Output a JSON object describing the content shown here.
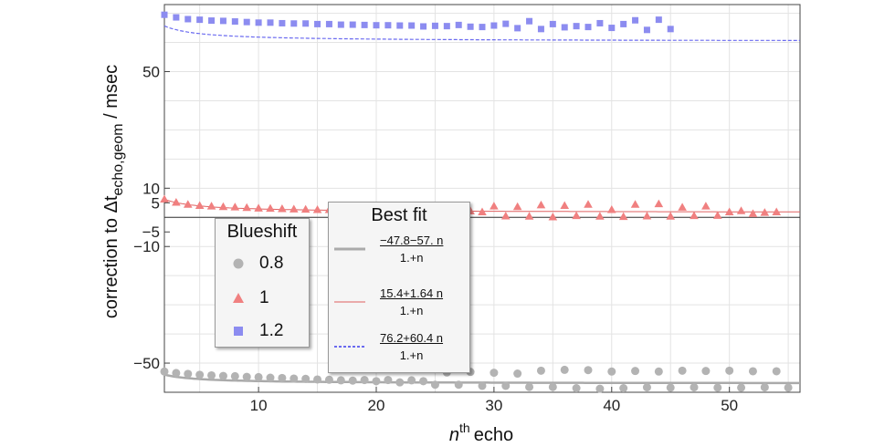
{
  "chart_data": {
    "type": "scatter",
    "xlabel": "echo",
    "xlabel_superscript_n": "n",
    "xlabel_superscript_th": "th",
    "ylabel_prefix": "correction to Δt",
    "ylabel_subscript": "echo,geom",
    "ylabel_suffix": " / msec",
    "xlim": [
      2,
      56
    ],
    "ylim": [
      -60,
      73
    ],
    "x_ticks": [
      10,
      20,
      30,
      40,
      50
    ],
    "y_ticks": [
      -50,
      -10,
      -5,
      5,
      10,
      50
    ],
    "grid": true,
    "legend_markers": {
      "title": "Blueshift",
      "position": "lower-left",
      "entries": [
        "0.8",
        "1",
        "1.2"
      ]
    },
    "legend_fits": {
      "title": "Best fit",
      "position": "lower-center",
      "entries": [
        {
          "num": "−47.8−57. n",
          "den": "1.+n"
        },
        {
          "num": "15.4+1.64 n",
          "den": "1.+n"
        },
        {
          "num": "76.2+60.4 n",
          "den": "1.+n"
        }
      ]
    },
    "series": [
      {
        "name": "0.8",
        "marker": "circle",
        "color": "#b3b3b3",
        "x": [
          2,
          3,
          4,
          5,
          6,
          7,
          8,
          9,
          10,
          11,
          12,
          13,
          14,
          15,
          16,
          17,
          18,
          19,
          20,
          21,
          22,
          23,
          24,
          25,
          26,
          27,
          28,
          29,
          30,
          31,
          32,
          33,
          34,
          35,
          36,
          37,
          38,
          39,
          40,
          41,
          42,
          43,
          44,
          45,
          46,
          47,
          48,
          49,
          50,
          51,
          52,
          53,
          54,
          55
        ],
        "y": [
          -52.9,
          -53.4,
          -53.7,
          -54.0,
          -54.2,
          -54.4,
          -54.5,
          -54.7,
          -54.8,
          -55.0,
          -55.1,
          -55.3,
          -55.4,
          -55.6,
          -55.7,
          -55.9,
          -56.0,
          -55.8,
          -56.2,
          -55.8,
          -56.6,
          -55.9,
          -56.2,
          -57.4,
          -53.2,
          -57.4,
          -53.0,
          -57.8,
          -53.3,
          -57.8,
          -53.6,
          -58.2,
          -52.6,
          -58.2,
          -52.3,
          -58.6,
          -52.4,
          -58.8,
          -52.9,
          -58.6,
          -52.7,
          -58.3,
          -52.9,
          -58.4,
          -52.6,
          -58.3,
          -52.7,
          -58.4,
          -52.6,
          -58.4,
          -52.8,
          -58.3,
          -52.8,
          -58.4
        ]
      },
      {
        "name": "1",
        "marker": "triangle",
        "color": "#f08080",
        "x": [
          2,
          3,
          4,
          5,
          6,
          7,
          8,
          9,
          10,
          11,
          12,
          13,
          14,
          15,
          16,
          17,
          18,
          19,
          20,
          21,
          22,
          23,
          24,
          25,
          26,
          27,
          28,
          29,
          30,
          31,
          32,
          33,
          34,
          35,
          36,
          37,
          38,
          39,
          40,
          41,
          42,
          43,
          44,
          45,
          46,
          47,
          48,
          49,
          50,
          51,
          52,
          53,
          54
        ],
        "y": [
          6.2,
          5.1,
          4.4,
          4.0,
          3.8,
          3.6,
          3.5,
          3.3,
          3.1,
          3.0,
          2.9,
          2.8,
          2.7,
          2.6,
          2.6,
          2.5,
          2.5,
          2.4,
          2.4,
          2.3,
          2.3,
          2.2,
          2.2,
          2.2,
          2.1,
          2.2,
          2.1,
          1.8,
          3.8,
          0.4,
          3.6,
          0.3,
          4.2,
          0.1,
          4.0,
          0.5,
          4.4,
          0.3,
          2.6,
          0.2,
          4.4,
          0.4,
          4.6,
          0.3,
          3.4,
          0.5,
          3.8,
          0.6,
          1.8,
          2.2,
          1.2,
          1.6,
          1.8
        ]
      },
      {
        "name": "1.2",
        "marker": "square",
        "color": "#8c8cf0",
        "x": [
          2,
          3,
          4,
          5,
          6,
          7,
          8,
          9,
          10,
          11,
          12,
          13,
          14,
          15,
          16,
          17,
          18,
          19,
          20,
          21,
          22,
          23,
          24,
          25,
          26,
          27,
          28,
          29,
          30,
          31,
          32,
          33,
          34,
          35,
          36,
          37,
          38,
          39,
          40,
          41,
          42,
          43,
          44,
          45
        ],
        "y": [
          69.5,
          68.6,
          68.0,
          67.8,
          67.5,
          67.4,
          67.2,
          67.0,
          66.8,
          66.8,
          66.6,
          66.5,
          66.5,
          66.3,
          66.3,
          66.1,
          66.1,
          66.0,
          65.9,
          65.9,
          65.8,
          65.8,
          65.5,
          65.7,
          65.6,
          66.0,
          65.4,
          65.3,
          65.8,
          66.4,
          64.9,
          67.3,
          64.6,
          66.3,
          65.2,
          65.6,
          65.3,
          66.6,
          65.0,
          66.3,
          67.6,
          64.3,
          67.8,
          64.6
        ]
      }
    ],
    "fits": [
      {
        "name": "0.8",
        "a": -47.8,
        "b": -57.0,
        "color": "#aaaaaa",
        "style": "solid-thick"
      },
      {
        "name": "1",
        "a": 15.4,
        "b": 1.64,
        "color": "#e06060",
        "style": "solid-thin"
      },
      {
        "name": "1.2",
        "a": 76.2,
        "b": 60.4,
        "color": "#6a6af0",
        "style": "dashed"
      }
    ]
  }
}
